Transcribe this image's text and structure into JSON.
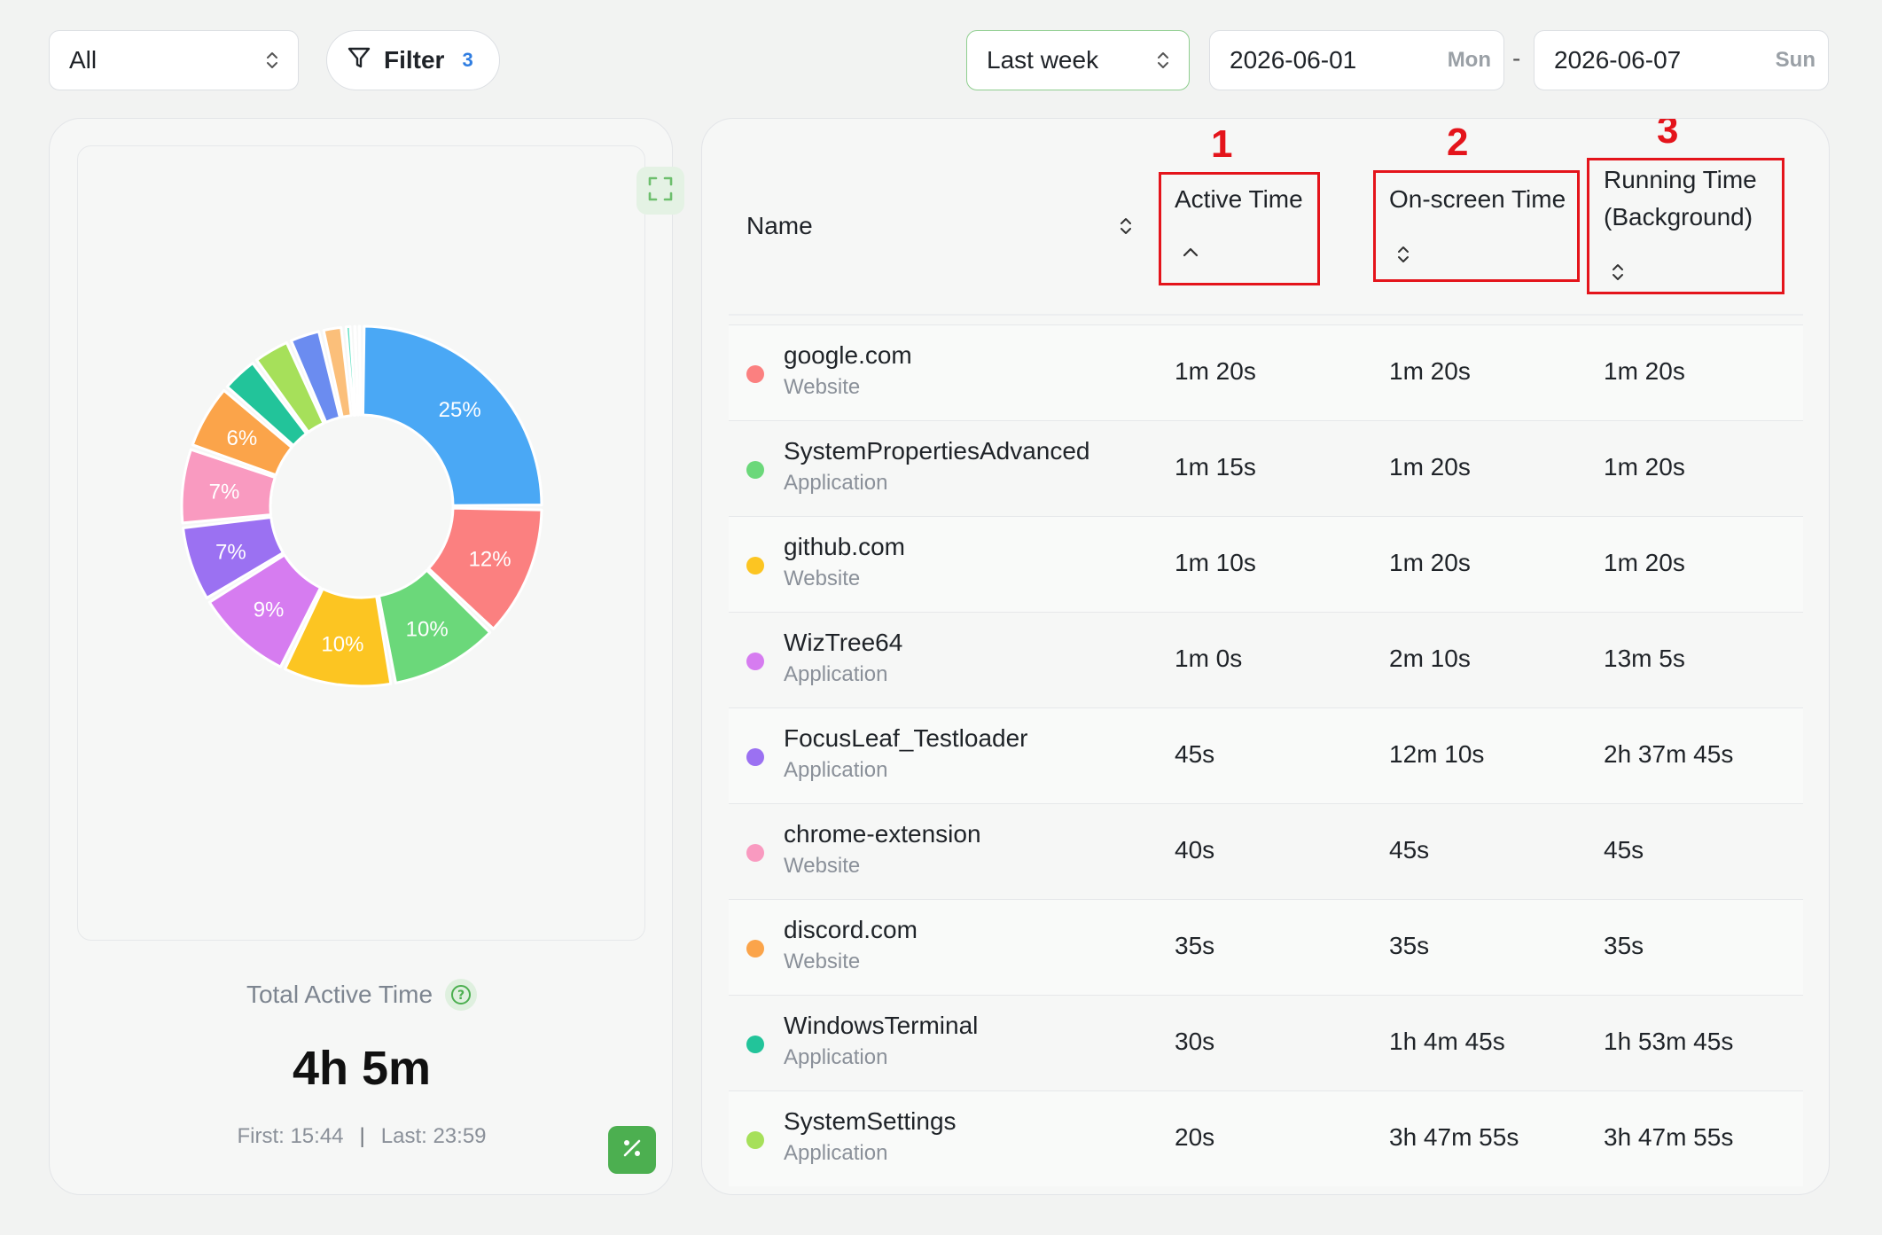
{
  "toolbar": {
    "scope_value": "All",
    "filter_label": "Filter",
    "filter_count": "3",
    "range_value": "Last week",
    "date_start": "2026-06-01",
    "date_start_weekday": "Mon",
    "date_separator": "-",
    "date_end": "2026-06-07",
    "date_end_weekday": "Sun"
  },
  "summary": {
    "total_label": "Total Active Time",
    "total_value": "4h 5m",
    "first": "First: 15:44",
    "separator": "|",
    "last": "Last: 23:59"
  },
  "chart_data": {
    "type": "pie",
    "donut": true,
    "slices": [
      {
        "label": "25%",
        "value": 25,
        "color": "#4aa8f5"
      },
      {
        "label": "12%",
        "value": 12,
        "color": "#fb8080"
      },
      {
        "label": "10%",
        "value": 10,
        "color": "#6bd87a"
      },
      {
        "label": "10%",
        "value": 10,
        "color": "#fcc522"
      },
      {
        "label": "9%",
        "value": 9,
        "color": "#d67cf0"
      },
      {
        "label": "7%",
        "value": 7,
        "color": "#9b71f2"
      },
      {
        "label": "7%",
        "value": 7,
        "color": "#f99ac0"
      },
      {
        "label": "6%",
        "value": 6,
        "color": "#fba44a"
      },
      {
        "label": "",
        "value": 3.5,
        "color": "#22c49a"
      },
      {
        "label": "",
        "value": 3.5,
        "color": "#a6e05a"
      },
      {
        "label": "",
        "value": 3,
        "color": "#6b8cf0"
      },
      {
        "label": "",
        "value": 2,
        "color": "#fbbf7a"
      },
      {
        "label": "",
        "value": 0.8,
        "color": "#5fe0c2"
      },
      {
        "label": "",
        "value": 0.4,
        "color": "#c9d7f5"
      },
      {
        "label": "",
        "value": 0.4,
        "color": "#bfe3f7"
      }
    ]
  },
  "table": {
    "headers": {
      "name": "Name",
      "active": "Active Time",
      "onscreen": "On-screen Time",
      "running": "Running Time (Background)"
    },
    "highlights": [
      "1",
      "2",
      "3"
    ],
    "rows": [
      {
        "name": "google.com",
        "type": "Website",
        "active": "1m 20s",
        "onscreen": "1m 20s",
        "running": "1m 20s",
        "color": "#fb8080"
      },
      {
        "name": "SystemPropertiesAdvanced",
        "type": "Application",
        "active": "1m 15s",
        "onscreen": "1m 20s",
        "running": "1m 20s",
        "color": "#6bd87a"
      },
      {
        "name": "github.com",
        "type": "Website",
        "active": "1m 10s",
        "onscreen": "1m 20s",
        "running": "1m 20s",
        "color": "#fcc522"
      },
      {
        "name": "WizTree64",
        "type": "Application",
        "active": "1m 0s",
        "onscreen": "2m 10s",
        "running": "13m 5s",
        "color": "#d67cf0"
      },
      {
        "name": "FocusLeaf_Testloader",
        "type": "Application",
        "active": "45s",
        "onscreen": "12m 10s",
        "running": "2h 37m 45s",
        "color": "#9b71f2"
      },
      {
        "name": "chrome-extension",
        "type": "Website",
        "active": "40s",
        "onscreen": "45s",
        "running": "45s",
        "color": "#f99ac0"
      },
      {
        "name": "discord.com",
        "type": "Website",
        "active": "35s",
        "onscreen": "35s",
        "running": "35s",
        "color": "#fba44a"
      },
      {
        "name": "WindowsTerminal",
        "type": "Application",
        "active": "30s",
        "onscreen": "1h 4m 45s",
        "running": "1h 53m 45s",
        "color": "#22c49a"
      },
      {
        "name": "SystemSettings",
        "type": "Application",
        "active": "20s",
        "onscreen": "3h 47m 55s",
        "running": "3h 47m 55s",
        "color": "#a6e05a"
      }
    ]
  }
}
